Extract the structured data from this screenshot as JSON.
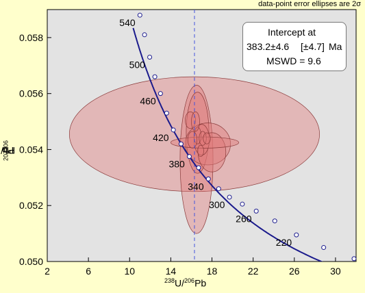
{
  "header_note": "data-point error ellipses are 2σ",
  "axis_titles": {
    "y": {
      "m1": "207",
      "b1": "Pb/",
      "m2": "206",
      "b2": "Pb"
    },
    "x": {
      "m1": "238",
      "b1": "U/",
      "m2": "206",
      "b2": "Pb"
    }
  },
  "intercept_box": {
    "title": "Intercept at",
    "value": "383.2±4.6",
    "uncertainty": "[±4.7]",
    "unit": "Ma",
    "mswd": "MSWD = 9.6"
  },
  "colors": {
    "plot_bg": "#e3e3e3",
    "page_bg": "#ffffcc",
    "concordia": "#1a1a8c",
    "ellipse_fill": "#e07a7a",
    "ellipse_stroke": "#8a3a3a",
    "intercept_line": "#4455dd"
  },
  "chart_data": {
    "type": "scatter",
    "subtype": "Tera-Wasserburg concordia diagram",
    "xlabel": "238U/206Pb",
    "ylabel": "207Pb/206Pb",
    "xlim": [
      2,
      32
    ],
    "ylim": [
      0.05,
      0.059
    ],
    "x_ticks": [
      2,
      6,
      10,
      14,
      18,
      22,
      26,
      30
    ],
    "y_ticks": [
      0.05,
      0.052,
      0.054,
      0.056,
      0.058
    ],
    "intercept_x": 16.3,
    "concordia_ages": [
      {
        "age": 540,
        "x": 11.0,
        "y": 0.0588,
        "label": "540"
      },
      {
        "age": 520,
        "x": 11.45,
        "y": 0.0581,
        "label": ""
      },
      {
        "age": 500,
        "x": 11.95,
        "y": 0.0573,
        "label": "500"
      },
      {
        "age": 480,
        "x": 12.45,
        "y": 0.0566,
        "label": ""
      },
      {
        "age": 460,
        "x": 13.0,
        "y": 0.056,
        "label": "460"
      },
      {
        "age": 440,
        "x": 13.6,
        "y": 0.0553,
        "label": ""
      },
      {
        "age": 420,
        "x": 14.25,
        "y": 0.0547,
        "label": "420"
      },
      {
        "age": 400,
        "x": 15.0,
        "y": 0.0542,
        "label": ""
      },
      {
        "age": 380,
        "x": 15.8,
        "y": 0.05375,
        "label": "380"
      },
      {
        "age": 360,
        "x": 16.7,
        "y": 0.05335,
        "label": ""
      },
      {
        "age": 340,
        "x": 17.65,
        "y": 0.05295,
        "label": "340"
      },
      {
        "age": 320,
        "x": 18.65,
        "y": 0.0526,
        "label": ""
      },
      {
        "age": 300,
        "x": 19.7,
        "y": 0.0523,
        "label": "300"
      },
      {
        "age": 280,
        "x": 20.95,
        "y": 0.05205,
        "label": ""
      },
      {
        "age": 260,
        "x": 22.3,
        "y": 0.0518,
        "label": "260"
      },
      {
        "age": 240,
        "x": 24.1,
        "y": 0.05145,
        "label": ""
      },
      {
        "age": 220,
        "x": 26.2,
        "y": 0.05095,
        "label": "220"
      },
      {
        "age": 200,
        "x": 28.85,
        "y": 0.0505,
        "label": ""
      },
      {
        "age": 180,
        "x": 31.8,
        "y": 0.0501,
        "label": ""
      }
    ],
    "concordia_curve_ages": [
      545,
      540,
      520,
      500,
      480,
      460,
      440,
      420,
      400,
      380,
      360,
      340,
      320,
      300,
      280,
      260,
      240,
      220,
      200,
      180
    ],
    "ellipses": [
      {
        "cx": 16.3,
        "cy": 0.05455,
        "rx": 12.15,
        "ry": 0.00205
      },
      {
        "cx": 16.5,
        "cy": 0.05365,
        "rx": 1.6,
        "ry": 0.00265
      },
      {
        "cx": 16.6,
        "cy": 0.0546,
        "rx": 1.1,
        "ry": 0.00145
      },
      {
        "cx": 17.6,
        "cy": 0.0542,
        "rx": 2.2,
        "ry": 0.00075
      },
      {
        "cx": 18.0,
        "cy": 0.0539,
        "rx": 1.35,
        "ry": 0.0007
      },
      {
        "cx": 17.0,
        "cy": 0.05435,
        "rx": 0.75,
        "ry": 0.00055
      },
      {
        "cx": 17.3,
        "cy": 0.05425,
        "rx": 3.3,
        "ry": 0.0002
      },
      {
        "cx": 16.6,
        "cy": 0.0545,
        "rx": 0.35,
        "ry": 0.0003
      },
      {
        "cx": 16.1,
        "cy": 0.05435,
        "rx": 0.45,
        "ry": 0.0003
      },
      {
        "cx": 15.9,
        "cy": 0.05505,
        "rx": 0.5,
        "ry": 0.0003
      },
      {
        "cx": 16.4,
        "cy": 0.055,
        "rx": 0.4,
        "ry": 0.00035
      },
      {
        "cx": 17.1,
        "cy": 0.0544,
        "rx": 0.35,
        "ry": 0.00025
      },
      {
        "cx": 17.5,
        "cy": 0.0544,
        "rx": 0.35,
        "ry": 0.0002
      },
      {
        "cx": 16.9,
        "cy": 0.05395,
        "rx": 0.3,
        "ry": 0.0002
      }
    ]
  }
}
